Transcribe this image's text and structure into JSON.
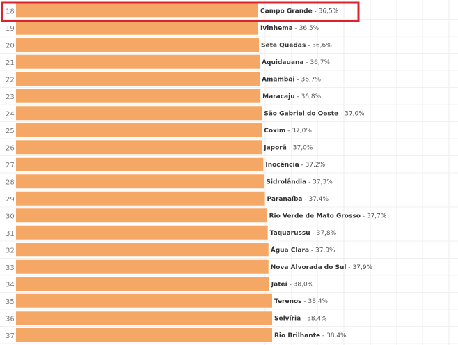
{
  "chart_data": {
    "type": "bar",
    "orientation": "horizontal",
    "bar_color": "#f5a865",
    "highlight_color": "#d9232d",
    "highlighted_rank": 18,
    "grid": true,
    "rows": [
      {
        "rank": 18,
        "name": "Campo Grande",
        "value": 36.5,
        "value_label": "36,5%"
      },
      {
        "rank": 19,
        "name": "Ivinhema",
        "value": 36.5,
        "value_label": "36,5%"
      },
      {
        "rank": 20,
        "name": "Sete Quedas",
        "value": 36.6,
        "value_label": "36,6%"
      },
      {
        "rank": 21,
        "name": "Aquidauana",
        "value": 36.7,
        "value_label": "36,7%"
      },
      {
        "rank": 22,
        "name": "Amambai",
        "value": 36.7,
        "value_label": "36,7%"
      },
      {
        "rank": 23,
        "name": "Maracaju",
        "value": 36.8,
        "value_label": "36,8%"
      },
      {
        "rank": 24,
        "name": "São Gabriel do Oeste",
        "value": 37.0,
        "value_label": "37,0%"
      },
      {
        "rank": 25,
        "name": "Coxim",
        "value": 37.0,
        "value_label": "37,0%"
      },
      {
        "rank": 26,
        "name": "Japorã",
        "value": 37.0,
        "value_label": "37,0%"
      },
      {
        "rank": 27,
        "name": "Inocência",
        "value": 37.2,
        "value_label": "37,2%"
      },
      {
        "rank": 28,
        "name": "Sidrolândia",
        "value": 37.3,
        "value_label": "37,3%"
      },
      {
        "rank": 29,
        "name": "Paranaíba",
        "value": 37.4,
        "value_label": "37,4%"
      },
      {
        "rank": 30,
        "name": "Rio Verde de Mato Grosso",
        "value": 37.7,
        "value_label": "37,7%"
      },
      {
        "rank": 31,
        "name": "Taquarussu",
        "value": 37.8,
        "value_label": "37,8%"
      },
      {
        "rank": 32,
        "name": "Água Clara",
        "value": 37.9,
        "value_label": "37,9%"
      },
      {
        "rank": 33,
        "name": "Nova Alvorada do Sul",
        "value": 37.9,
        "value_label": "37,9%"
      },
      {
        "rank": 34,
        "name": "Jateí",
        "value": 38.0,
        "value_label": "38,0%"
      },
      {
        "rank": 35,
        "name": "Terenos",
        "value": 38.4,
        "value_label": "38,4%"
      },
      {
        "rank": 36,
        "name": "Selvíria",
        "value": 38.4,
        "value_label": "38,4%"
      },
      {
        "rank": 37,
        "name": "Rio Brilhante",
        "value": 38.4,
        "value_label": "38,4%"
      }
    ]
  }
}
